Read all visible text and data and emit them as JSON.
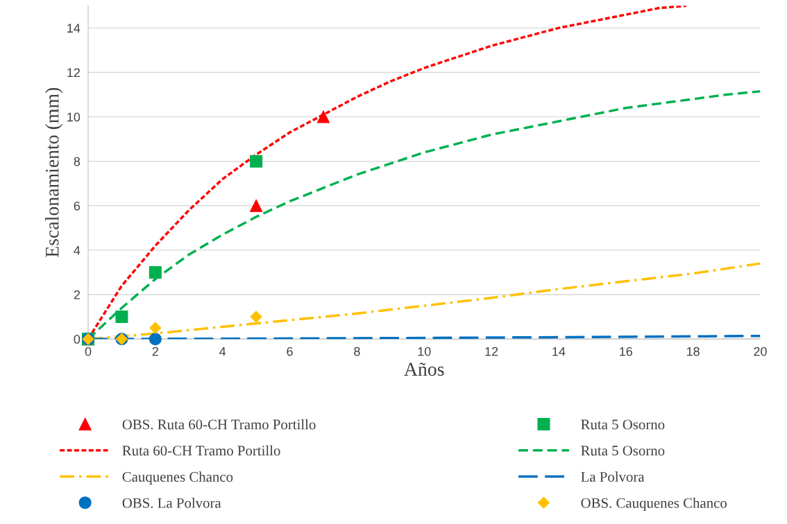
{
  "chart_data": {
    "type": "line",
    "xlabel": "Años",
    "ylabel": "Escalonamiento (mm)",
    "xlim": [
      0,
      20
    ],
    "ylim": [
      0,
      15
    ],
    "xticks": [
      0,
      2,
      4,
      6,
      8,
      10,
      12,
      14,
      16,
      18,
      20
    ],
    "yticks": [
      0,
      2,
      4,
      6,
      8,
      10,
      12,
      14
    ],
    "grid": "y",
    "legend": "bottom",
    "series": [
      {
        "name": "OBS. Ruta 60-CH Tramo Portillo",
        "type": "scatter",
        "marker": "triangle",
        "color": "#ff0000",
        "x": [
          0,
          1,
          2,
          5,
          7
        ],
        "values": [
          0,
          null,
          null,
          6,
          10
        ]
      },
      {
        "name": "Ruta 5 Osorno",
        "type": "scatter",
        "marker": "square",
        "color": "#00b050",
        "x": [
          0,
          1,
          2,
          5
        ],
        "values": [
          0,
          1,
          3,
          8
        ]
      },
      {
        "name": "Ruta 60-CH Tramo Portillo",
        "line_style": "dotted",
        "color": "#ff0000",
        "x": [
          0,
          1,
          2,
          3,
          4,
          5,
          6,
          7,
          8,
          9,
          10,
          11,
          12,
          13,
          14,
          15,
          16,
          17,
          17.8
        ],
        "values": [
          0,
          2.4,
          4.2,
          5.8,
          7.2,
          8.3,
          9.3,
          10.1,
          10.9,
          11.6,
          12.2,
          12.7,
          13.2,
          13.6,
          14.0,
          14.3,
          14.6,
          14.9,
          15
        ]
      },
      {
        "name": "Ruta 5 Osorno",
        "line_style": "dashed",
        "color": "#00b050",
        "x": [
          0,
          1,
          2,
          3,
          4,
          5,
          6,
          7,
          8,
          9,
          10,
          11,
          12,
          13,
          14,
          15,
          16,
          17,
          18,
          19,
          20
        ],
        "values": [
          0,
          1.4,
          2.7,
          3.8,
          4.7,
          5.5,
          6.2,
          6.8,
          7.4,
          7.9,
          8.4,
          8.8,
          9.2,
          9.5,
          9.8,
          10.1,
          10.4,
          10.6,
          10.8,
          11.0,
          11.15
        ]
      },
      {
        "name": "Cauquenes Chanco",
        "line_style": "dashdot",
        "color": "#ffc000",
        "x": [
          0,
          2,
          4,
          6,
          8,
          10,
          12,
          14,
          16,
          18,
          20
        ],
        "values": [
          0,
          0.25,
          0.55,
          0.85,
          1.15,
          1.5,
          1.85,
          2.25,
          2.6,
          2.95,
          3.4
        ]
      },
      {
        "name": "La Polvora",
        "line_style": "longdash",
        "color": "#0070c0",
        "x": [
          0,
          5,
          10,
          15,
          20
        ],
        "values": [
          0,
          0.02,
          0.05,
          0.09,
          0.14
        ]
      },
      {
        "name": "OBS. La Polvora",
        "type": "scatter",
        "marker": "circle",
        "color": "#0070c0",
        "x": [
          0,
          1,
          2
        ],
        "values": [
          0,
          0,
          0
        ]
      },
      {
        "name": "OBS. Cauquenes Chanco",
        "type": "scatter",
        "marker": "diamond",
        "color": "#ffc000",
        "x": [
          0,
          1,
          2,
          5
        ],
        "values": [
          0,
          0,
          0.5,
          1
        ]
      }
    ]
  }
}
